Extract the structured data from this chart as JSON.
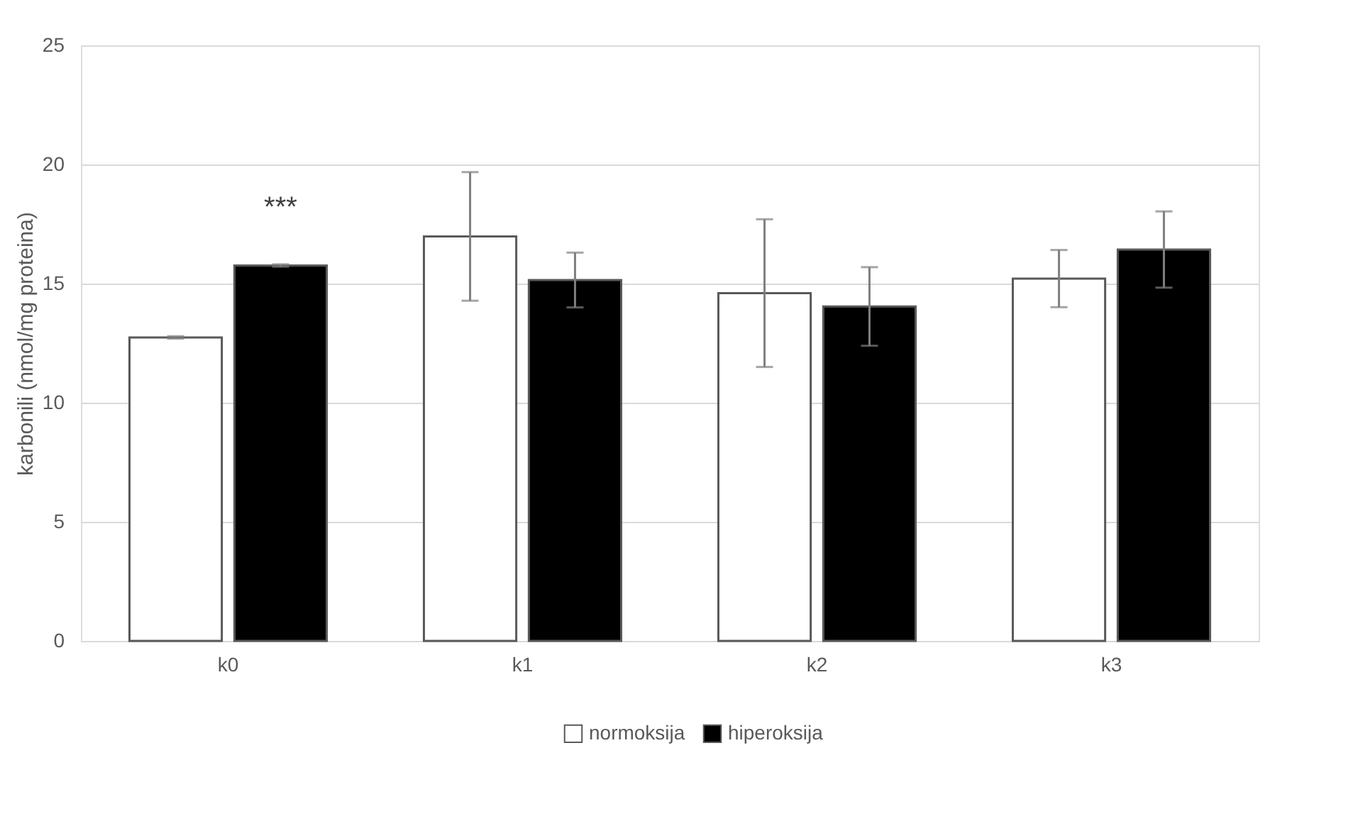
{
  "chart_data": {
    "type": "bar",
    "ylabel": "karbonili (nmol/mg proteina)",
    "categories": [
      "k0",
      "k1",
      "k2",
      "k3"
    ],
    "series": [
      {
        "name": "normoksija",
        "color": "#ffffff",
        "values": [
          12.74,
          16.98,
          14.6,
          15.21
        ],
        "errors": [
          0.05,
          2.7,
          3.1,
          1.2
        ]
      },
      {
        "name": "hiperoksija",
        "color": "#000000",
        "values": [
          15.76,
          15.15,
          14.04,
          16.43
        ],
        "errors": [
          0.05,
          1.15,
          1.65,
          1.6
        ]
      }
    ],
    "annotations": [
      "***"
    ],
    "ylim": [
      0,
      25
    ],
    "yticks": [
      0,
      5,
      10,
      15,
      20,
      25
    ],
    "grid": "y",
    "legend": "bottom"
  }
}
